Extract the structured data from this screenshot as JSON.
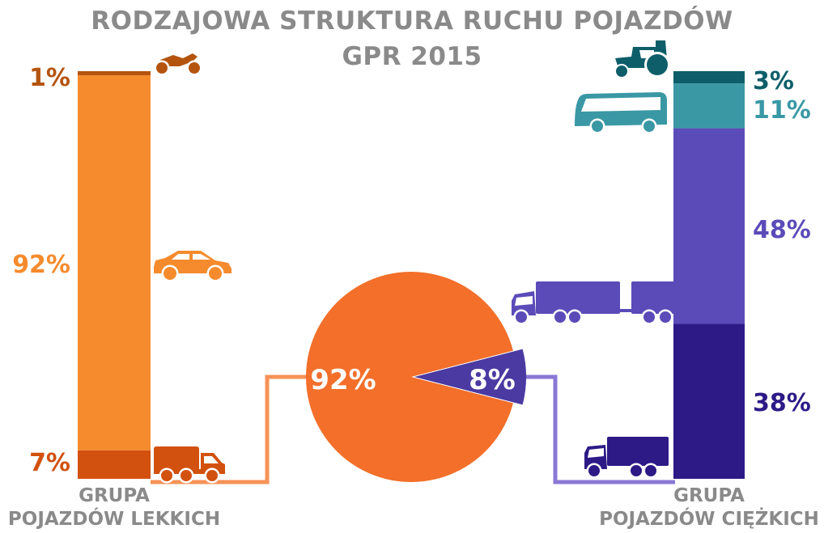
{
  "title_line1": "RODZAJOWA STRUKTURA RUCHU POJAZDÓW",
  "title_line2": "GPR 2015",
  "colors": {
    "light_total": "#f36f2a",
    "heavy_total": "#4a3aa2",
    "light_connector": "#f79257",
    "heavy_connector": "#8a78d6",
    "group_label": "#8a8a8a"
  },
  "chart_data": [
    {
      "type": "pie",
      "slices": [
        {
          "label": "92%",
          "value": 92,
          "color": "#f36f2a"
        },
        {
          "label": "8%",
          "value": 8,
          "color": "#4a3aa2"
        }
      ]
    },
    {
      "type": "bar",
      "stacked": true,
      "group_label_line1": "GRUPA",
      "group_label_line2": "POJAZDÓW LEKKICH",
      "segments_bottom_to_top": [
        {
          "label": "7%",
          "value": 7,
          "icon": "delivery-van-icon",
          "color": "#d2510f"
        },
        {
          "label": "92%",
          "value": 92,
          "icon": "car-icon",
          "color": "#f58b2d"
        },
        {
          "label": "1%",
          "value": 1,
          "icon": "motorcycle-icon",
          "color": "#b4540f"
        }
      ]
    },
    {
      "type": "bar",
      "stacked": true,
      "group_label_line1": "GRUPA",
      "group_label_line2": "POJAZDÓW CIĘŻKICH",
      "segments_bottom_to_top": [
        {
          "label": "38%",
          "value": 38,
          "icon": "truck-icon",
          "color": "#2d1a87"
        },
        {
          "label": "48%",
          "value": 48,
          "icon": "truck-with-trailer-icon",
          "color": "#5b4bb8"
        },
        {
          "label": "11%",
          "value": 11,
          "icon": "bus-icon",
          "color": "#3a98a5"
        },
        {
          "label": "3%",
          "value": 3,
          "icon": "tractor-icon",
          "color": "#0e5e6a"
        }
      ]
    }
  ]
}
